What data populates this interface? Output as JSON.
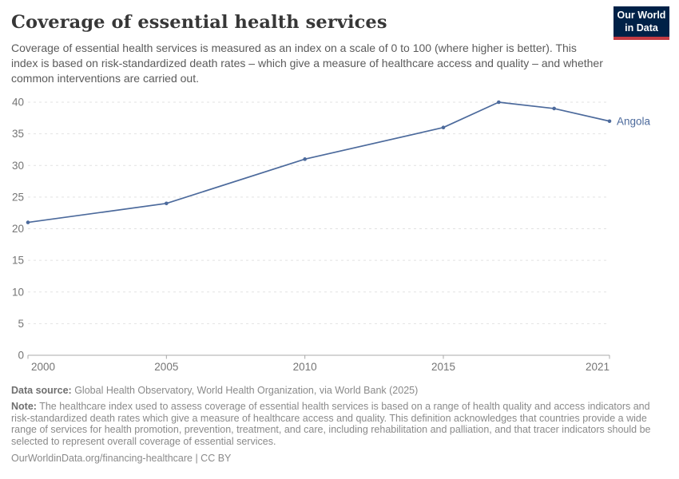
{
  "header": {
    "title": "Coverage of essential health services",
    "subtitle": "Coverage of essential health services is measured as an index on a scale of 0 to 100 (where higher is better). This index is based on risk-standardized death rates – which give a measure of healthcare access and quality – and whether common interventions are carried out.",
    "logo": {
      "line1": "Our World",
      "line2": "in Data",
      "background_color": "#002147",
      "bar_color": "#c43b43"
    }
  },
  "chart_data": {
    "type": "line",
    "title": "Coverage of essential health services",
    "xlabel": "",
    "ylabel": "",
    "xlim": [
      2000,
      2021
    ],
    "ylim": [
      0,
      40
    ],
    "x_ticks": [
      2000,
      2005,
      2010,
      2015,
      2021
    ],
    "y_ticks": [
      0,
      5,
      10,
      15,
      20,
      25,
      30,
      35,
      40
    ],
    "grid": "horizontal-dashed",
    "legend_position": "end-of-line-label",
    "series": [
      {
        "name": "Angola",
        "color": "#4c6a9c",
        "x": [
          2000,
          2005,
          2010,
          2015,
          2017,
          2019,
          2021
        ],
        "values": [
          21,
          24,
          31,
          36,
          40,
          39,
          37
        ]
      }
    ]
  },
  "chart_style": {
    "gridline_color": "#e2e2e2",
    "axis_color": "#a8a8a8",
    "tick_label_color": "#757575"
  },
  "footer": {
    "data_source_label": "Data source:",
    "data_source_text": " Global Health Observatory, World Health Organization, via World Bank (2025)",
    "note_label": "Note:",
    "note_text": " The healthcare index used to assess coverage of essential health services is based on a range of health quality and access indicators and risk-standardized death rates which give a measure of healthcare access and quality. This definition acknowledges that countries provide a wide range of services for health promotion, prevention, treatment, and care, including rehabilitation and palliation, and that tracer indicators should be selected to represent overall coverage of essential services.",
    "link_text": "OurWorldinData.org/financing-healthcare | CC BY"
  }
}
